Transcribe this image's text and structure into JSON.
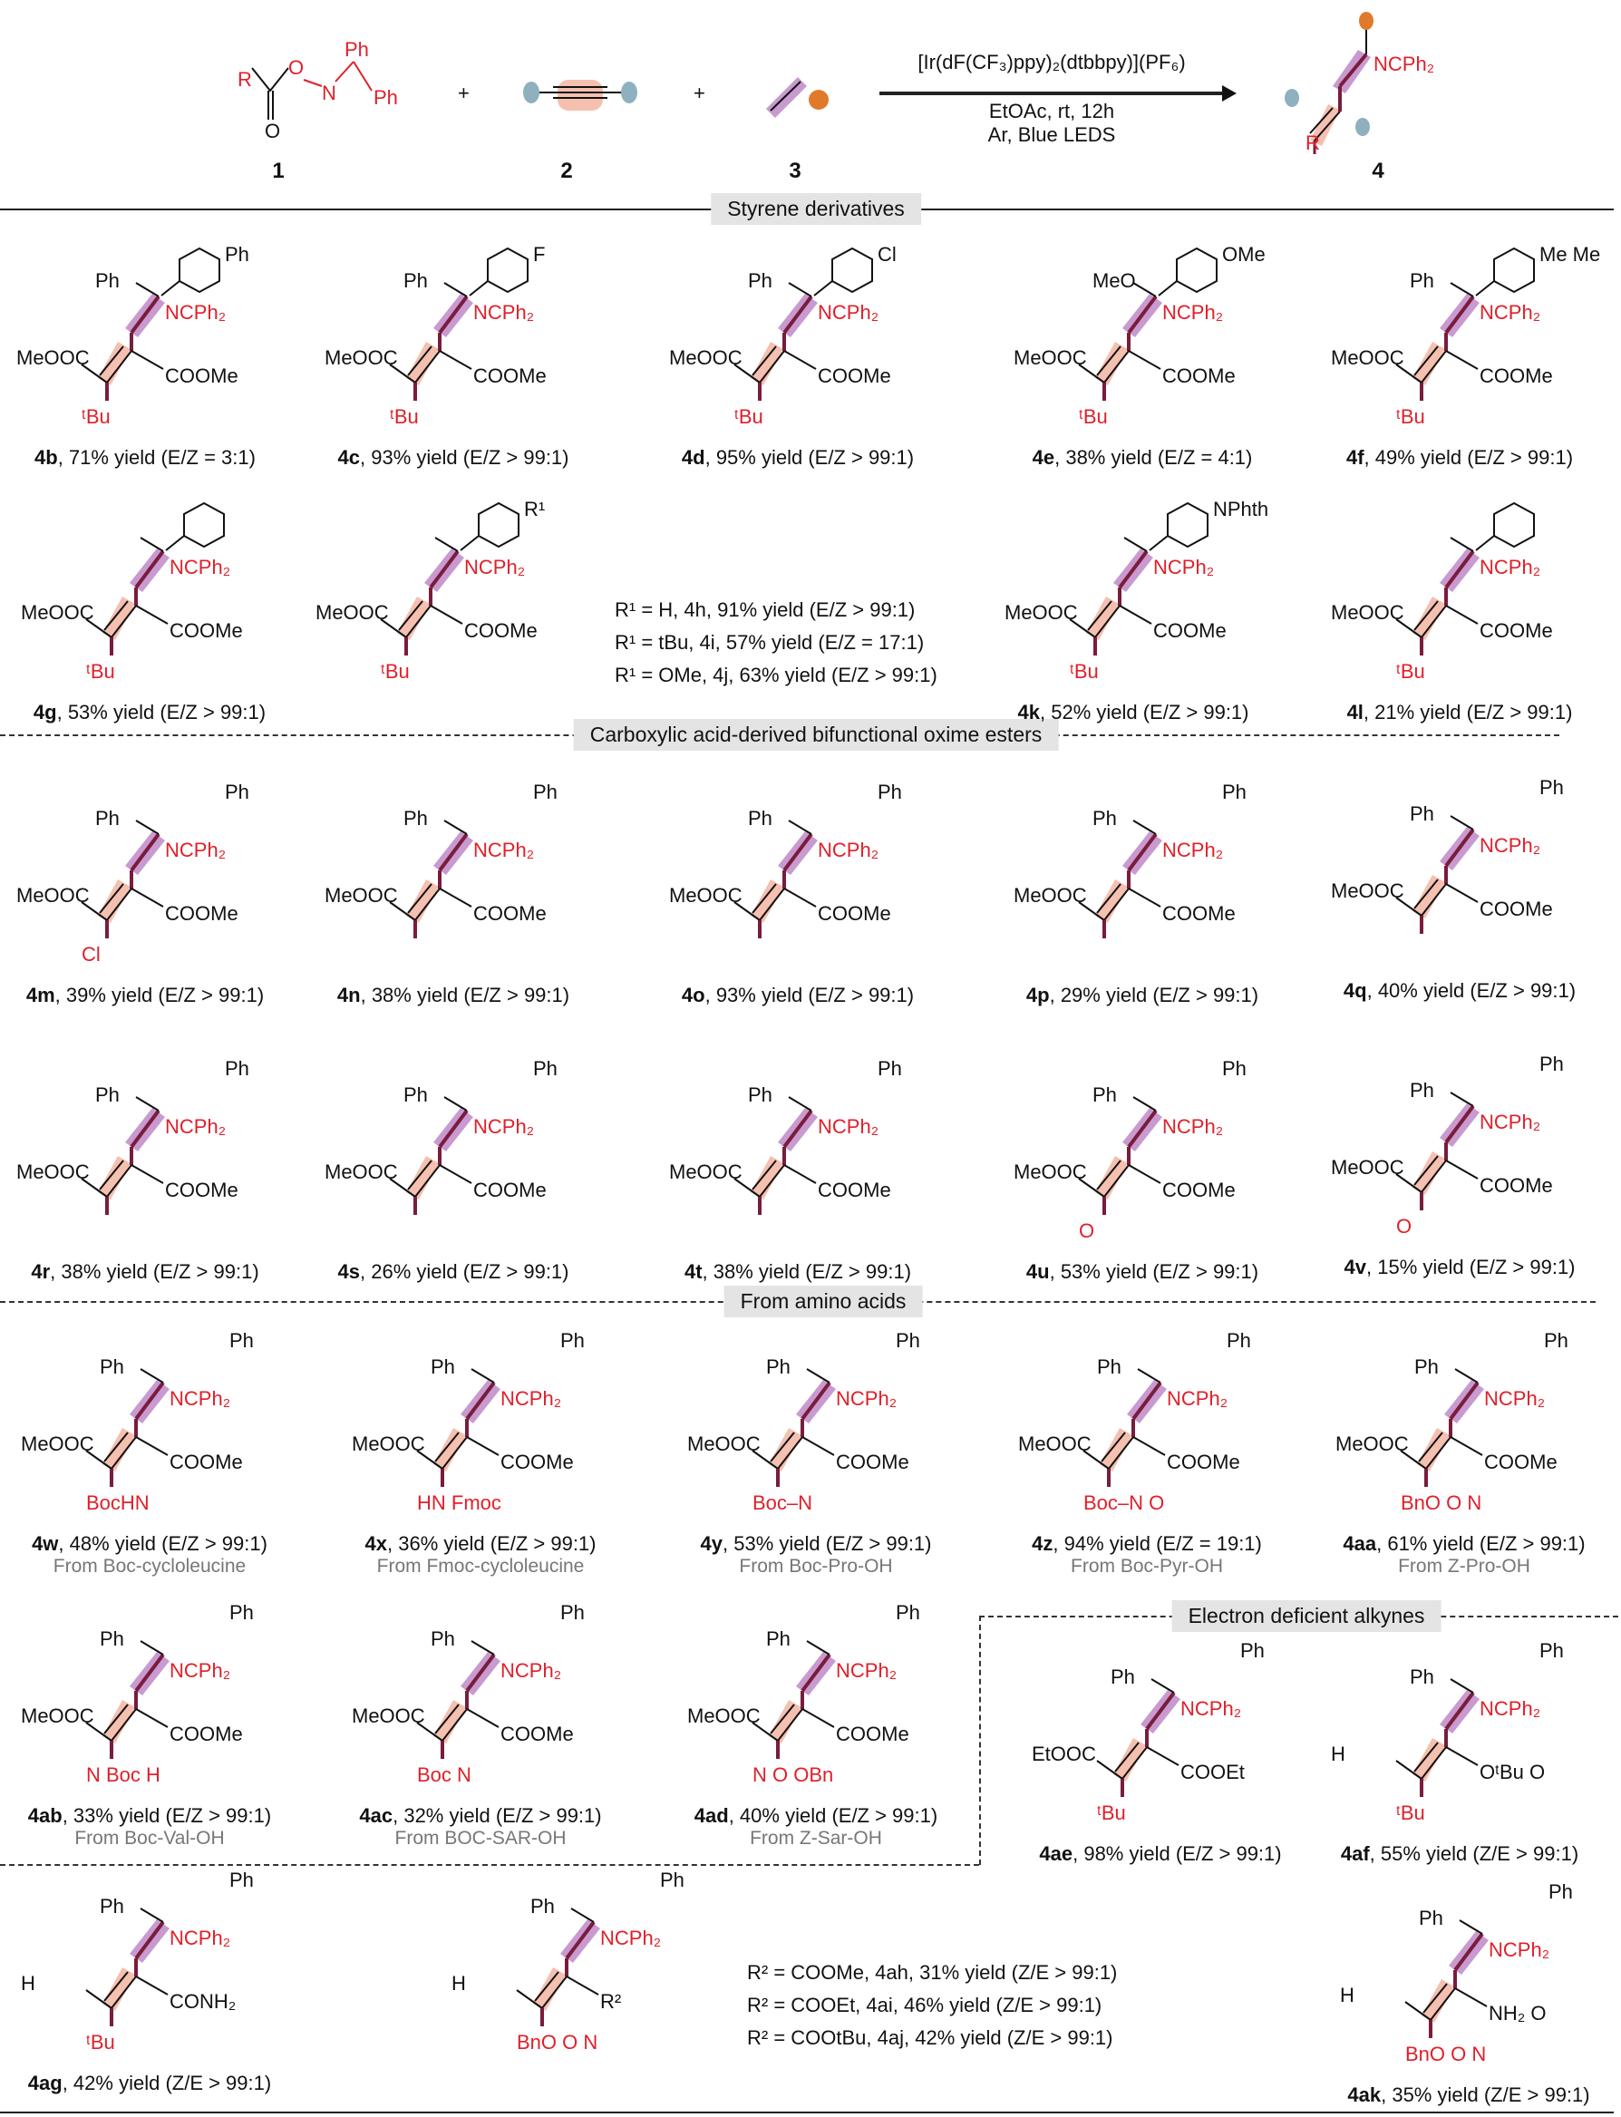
{
  "scheme": {
    "reagent1": {
      "r": "R",
      "o1": "O",
      "n": "N",
      "ph1": "Ph",
      "ph2": "Ph",
      "o2": "O",
      "number": "1"
    },
    "reagent2": {
      "number": "2",
      "plus": "+"
    },
    "reagent3": {
      "number": "3",
      "plus": "+"
    },
    "catalyst": "[Ir(dF(CF₃)ppy)₂(dtbbpy)](PF₆)",
    "conditions1": "EtOAc, rt, 12h",
    "conditions2": "Ar, Blue LEDS",
    "product": {
      "nc": "NCPh₂",
      "r": "R",
      "number": "4"
    }
  },
  "sections": {
    "styrene": "Styrene derivatives",
    "carboxylic": "Carboxylic acid-derived bifunctional oxime esters",
    "amino": "From amino acids",
    "alkynes": "Electron deficient alkynes"
  },
  "r1_block": [
    "R¹ = H, 4h, 91% yield (E/Z > 99:1)",
    "R¹ = tBu, 4i, 57% yield (E/Z = 17:1)",
    "R¹ = OMe, 4j, 63% yield (E/Z > 99:1)"
  ],
  "r2_block": [
    "R² = COOMe, 4ah, 31% yield (Z/E > 99:1)",
    "R² = COOEt, 4ai, 46% yield (Z/E > 99:1)",
    "R² = COOtBu, 4aj, 42% yield (Z/E > 99:1)"
  ],
  "colors": {
    "red": "#e0202a",
    "purple": "#c89ad0",
    "pink": "#f5c0b0",
    "bond": "#7a1c3c",
    "bluegray": "#8fb0be",
    "orange": "#e07a2a"
  },
  "compounds": [
    {
      "id": "4b",
      "text": ", 71% yield (E/Z = 3:1)",
      "top1": "Ph",
      "top2": "Ph",
      "ring": true,
      "nc": "NCPh₂",
      "left": "MeOOC",
      "right": "COOMe",
      "sub": "ᵗBu"
    },
    {
      "id": "4c",
      "text": ", 93% yield (E/Z > 99:1)",
      "top1": "Ph",
      "top2": "F",
      "ring": true,
      "nc": "NCPh₂",
      "left": "MeOOC",
      "right": "COOMe",
      "sub": "ᵗBu"
    },
    {
      "id": "4d",
      "text": ", 95% yield (E/Z > 99:1)",
      "top1": "Ph",
      "top2": "Cl",
      "ring": true,
      "nc": "NCPh₂",
      "left": "MeOOC",
      "right": "COOMe",
      "sub": "ᵗBu"
    },
    {
      "id": "4e",
      "text": ", 38% yield (E/Z  = 4:1)",
      "top1": "MeO",
      "top2": "OMe",
      "ring": true,
      "nc": "NCPh₂",
      "left": "MeOOC",
      "right": "COOMe",
      "sub": "ᵗBu"
    },
    {
      "id": "4f",
      "text": ", 49% yield (E/Z > 99:1)",
      "top1": "Ph",
      "top2": "Me  Me",
      "ring": true,
      "nc": "NCPh₂",
      "left": "MeOOC",
      "right": "COOMe",
      "sub": "ᵗBu"
    },
    {
      "id": "4g",
      "text": ", 53% yield (E/Z > 99:1)",
      "top1": "",
      "top2": "",
      "ring": true,
      "nc": "NCPh₂",
      "left": "MeOOC",
      "right": "COOMe",
      "sub": "ᵗBu"
    },
    {
      "id": "",
      "text": "",
      "top1": "",
      "top2": "R¹",
      "ring": true,
      "nc": "NCPh₂",
      "left": "MeOOC",
      "right": "COOMe",
      "sub": "ᵗBu"
    },
    {
      "id": "4k",
      "text": ", 52% yield (E/Z > 99:1)",
      "top1": "",
      "top2": "NPhth",
      "ring": true,
      "nc": "NCPh₂",
      "left": "MeOOC",
      "right": "COOMe",
      "sub": "ᵗBu"
    },
    {
      "id": "4l",
      "text": ", 21% yield (E/Z > 99:1)",
      "top1": "",
      "top2": "",
      "ring": true,
      "nc": "NCPh₂",
      "left": "MeOOC",
      "right": "COOMe",
      "sub": "ᵗBu"
    },
    {
      "id": "4m",
      "text": ", 39% yield (E/Z > 99:1)",
      "top1": "Ph",
      "top2": "Ph",
      "nc": "NCPh₂",
      "left": "MeOOC",
      "right": "COOMe",
      "sub": "Cl"
    },
    {
      "id": "4n",
      "text": ", 38% yield (E/Z > 99:1)",
      "top1": "Ph",
      "top2": "Ph",
      "nc": "NCPh₂",
      "left": "MeOOC",
      "right": "COOMe",
      "sub": ""
    },
    {
      "id": "4o",
      "text": ", 93% yield (E/Z > 99:1)",
      "top1": "Ph",
      "top2": "Ph",
      "nc": "NCPh₂",
      "left": "MeOOC",
      "right": "COOMe",
      "sub": ""
    },
    {
      "id": "4p",
      "text": ", 29% yield (E/Z > 99:1)",
      "top1": "Ph",
      "top2": "Ph",
      "nc": "NCPh₂",
      "left": "MeOOC",
      "right": "COOMe",
      "sub": ""
    },
    {
      "id": "4q",
      "text": ", 40% yield (E/Z > 99:1)",
      "top1": "Ph",
      "top2": "Ph",
      "nc": "NCPh₂",
      "left": "MeOOC",
      "right": "COOMe",
      "sub": ""
    },
    {
      "id": "4r",
      "text": ", 38% yield (E/Z > 99:1)",
      "top1": "Ph",
      "top2": "Ph",
      "nc": "NCPh₂",
      "left": "MeOOC",
      "right": "COOMe",
      "sub": ""
    },
    {
      "id": "4s",
      "text": ", 26% yield (E/Z > 99:1)",
      "top1": "Ph",
      "top2": "Ph",
      "nc": "NCPh₂",
      "left": "MeOOC",
      "right": "COOMe",
      "sub": ""
    },
    {
      "id": "4t",
      "text": ", 38% yield (E/Z > 99:1)",
      "top1": "Ph",
      "top2": "Ph",
      "nc": "NCPh₂",
      "left": "MeOOC",
      "right": "COOMe",
      "sub": ""
    },
    {
      "id": "4u",
      "text": ", 53% yield (E/Z > 99:1)",
      "top1": "Ph",
      "top2": "Ph",
      "nc": "NCPh₂",
      "left": "MeOOC",
      "right": "COOMe",
      "sub": "O"
    },
    {
      "id": "4v",
      "text": ", 15% yield (E/Z > 99:1)",
      "top1": "Ph",
      "top2": "Ph",
      "nc": "NCPh₂",
      "left": "MeOOC",
      "right": "COOMe",
      "sub": "O"
    },
    {
      "id": "4w",
      "text": ", 48% yield (E/Z > 99:1)",
      "source": "From Boc-cycloleucine",
      "top1": "Ph",
      "top2": "Ph",
      "nc": "NCPh₂",
      "left": "MeOOC",
      "right": "COOMe",
      "sub": "BocHN"
    },
    {
      "id": "4x",
      "text": ", 36% yield (E/Z > 99:1)",
      "source": "From Fmoc-cycloleucine",
      "top1": "Ph",
      "top2": "Ph",
      "nc": "NCPh₂",
      "left": "MeOOC",
      "right": "COOMe",
      "sub": "HN Fmoc"
    },
    {
      "id": "4y",
      "text": ", 53% yield (E/Z > 99:1)",
      "source": "From Boc-Pro-OH",
      "top1": "Ph",
      "top2": "Ph",
      "nc": "NCPh₂",
      "left": "MeOOC",
      "right": "COOMe",
      "sub": "Boc–N"
    },
    {
      "id": "4z",
      "text": ", 94% yield (E/Z = 19:1)",
      "source": "From Boc-Pyr-OH",
      "top1": "Ph",
      "top2": "Ph",
      "nc": "NCPh₂",
      "left": "MeOOC",
      "right": "COOMe",
      "sub": "Boc–N  O"
    },
    {
      "id": "4aa",
      "text": ", 61% yield (E/Z > 99:1)",
      "source": "From Z-Pro-OH",
      "top1": "Ph",
      "top2": "Ph",
      "nc": "NCPh₂",
      "left": "MeOOC",
      "right": "COOMe",
      "sub": "BnO O N"
    },
    {
      "id": "4ab",
      "text": ", 33% yield (E/Z > 99:1)",
      "source": "From Boc-Val-OH",
      "top1": "Ph",
      "top2": "Ph",
      "nc": "NCPh₂",
      "left": "MeOOC",
      "right": "COOMe",
      "sub": "N Boc H"
    },
    {
      "id": "4ac",
      "text": ", 32% yield (E/Z > 99:1)",
      "source": "From BOC-SAR-OH",
      "top1": "Ph",
      "top2": "Ph",
      "nc": "NCPh₂",
      "left": "MeOOC",
      "right": "COOMe",
      "sub": "Boc N"
    },
    {
      "id": "4ad",
      "text": ", 40% yield (E/Z > 99:1)",
      "source": "From Z-Sar-OH",
      "top1": "Ph",
      "top2": "Ph",
      "nc": "NCPh₂",
      "left": "MeOOC",
      "right": "COOMe",
      "sub": "N O OBn"
    },
    {
      "id": "4ae",
      "text": ", 98% yield (E/Z > 99:1)",
      "top1": "Ph",
      "top2": "Ph",
      "nc": "NCPh₂",
      "left": "EtOOC",
      "right": "COOEt",
      "sub": "ᵗBu"
    },
    {
      "id": "4af",
      "text": ", 55% yield (Z/E > 99:1)",
      "top1": "Ph",
      "top2": "Ph",
      "nc": "NCPh₂",
      "left": "H",
      "right": "OᵗBu  O",
      "sub": "ᵗBu"
    },
    {
      "id": "4ag",
      "text": ", 42% yield (Z/E > 99:1)",
      "top1": "Ph",
      "top2": "Ph",
      "nc": "NCPh₂",
      "left": "H",
      "right": "CONH₂",
      "sub": "ᵗBu"
    },
    {
      "id": "",
      "text": "",
      "top1": "Ph",
      "top2": "Ph",
      "nc": "NCPh₂",
      "left": "H",
      "right": "R²",
      "sub": "BnO O N"
    },
    {
      "id": "4ak",
      "text": ", 35% yield (Z/E > 99:1)",
      "top1": "Ph",
      "top2": "Ph",
      "nc": "NCPh₂",
      "left": "H",
      "right": "NH₂ O",
      "sub": "BnO O N"
    }
  ]
}
